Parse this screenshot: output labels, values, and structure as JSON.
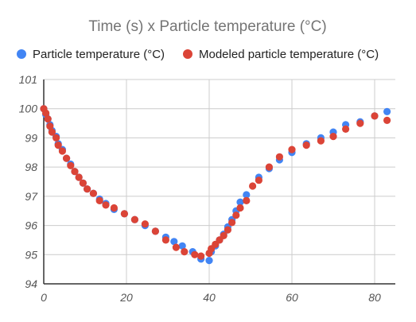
{
  "chart_data": {
    "type": "scatter",
    "title": "Time (s) x Particle temperature (°C)",
    "xlabel": "",
    "ylabel": "",
    "xlim": [
      0,
      85
    ],
    "ylim": [
      94,
      101
    ],
    "xticks": [
      0,
      20,
      40,
      60,
      80
    ],
    "yticks": [
      94,
      95,
      96,
      97,
      98,
      99,
      100,
      101
    ],
    "grid": true,
    "legend_position": "top",
    "series": [
      {
        "name": "Particle temperature (°C)",
        "color": "#4285f4",
        "points": [
          [
            0,
            100.0
          ],
          [
            0.5,
            99.8
          ],
          [
            1,
            99.65
          ],
          [
            1.5,
            99.45
          ],
          [
            2,
            99.25
          ],
          [
            3,
            99.05
          ],
          [
            3.5,
            98.8
          ],
          [
            4.5,
            98.6
          ],
          [
            5.5,
            98.3
          ],
          [
            6.5,
            98.1
          ],
          [
            7.5,
            97.85
          ],
          [
            8.5,
            97.65
          ],
          [
            9.5,
            97.45
          ],
          [
            10.5,
            97.25
          ],
          [
            12,
            97.1
          ],
          [
            13.5,
            96.9
          ],
          [
            15,
            96.75
          ],
          [
            17,
            96.55
          ],
          [
            19.5,
            96.4
          ],
          [
            22,
            96.2
          ],
          [
            24.5,
            96.0
          ],
          [
            27,
            95.8
          ],
          [
            29.5,
            95.6
          ],
          [
            31.5,
            95.45
          ],
          [
            33.5,
            95.3
          ],
          [
            36,
            95.1
          ],
          [
            38,
            94.85
          ],
          [
            40,
            94.8
          ],
          [
            40.5,
            95.1
          ],
          [
            41.5,
            95.3
          ],
          [
            42.5,
            95.5
          ],
          [
            43.5,
            95.7
          ],
          [
            44.5,
            95.95
          ],
          [
            45.5,
            96.2
          ],
          [
            46.5,
            96.5
          ],
          [
            47.5,
            96.8
          ],
          [
            49,
            97.05
          ],
          [
            52,
            97.65
          ],
          [
            54.5,
            97.95
          ],
          [
            57,
            98.25
          ],
          [
            60,
            98.5
          ],
          [
            63.5,
            98.8
          ],
          [
            67,
            99.0
          ],
          [
            70,
            99.2
          ],
          [
            73,
            99.45
          ],
          [
            76.5,
            99.55
          ],
          [
            80,
            99.75
          ],
          [
            83,
            99.9
          ]
        ]
      },
      {
        "name": "Modeled particle temperature (°C)",
        "color": "#db4437",
        "points": [
          [
            0,
            100.0
          ],
          [
            0.5,
            99.85
          ],
          [
            1,
            99.65
          ],
          [
            1.5,
            99.4
          ],
          [
            2,
            99.2
          ],
          [
            3,
            99.0
          ],
          [
            3.5,
            98.75
          ],
          [
            4.5,
            98.55
          ],
          [
            5.5,
            98.3
          ],
          [
            6.5,
            98.05
          ],
          [
            7.5,
            97.85
          ],
          [
            8.5,
            97.65
          ],
          [
            9.5,
            97.45
          ],
          [
            10.5,
            97.25
          ],
          [
            12,
            97.1
          ],
          [
            13.5,
            96.85
          ],
          [
            15,
            96.7
          ],
          [
            17,
            96.6
          ],
          [
            19.5,
            96.4
          ],
          [
            22,
            96.2
          ],
          [
            24.5,
            96.05
          ],
          [
            27,
            95.8
          ],
          [
            29.5,
            95.5
          ],
          [
            32,
            95.25
          ],
          [
            34,
            95.1
          ],
          [
            36.5,
            95.0
          ],
          [
            38,
            94.95
          ],
          [
            40,
            95.05
          ],
          [
            40.5,
            95.2
          ],
          [
            41.5,
            95.35
          ],
          [
            42.5,
            95.5
          ],
          [
            43.5,
            95.65
          ],
          [
            44.5,
            95.85
          ],
          [
            45.5,
            96.1
          ],
          [
            46.5,
            96.35
          ],
          [
            47.5,
            96.6
          ],
          [
            49,
            96.85
          ],
          [
            50.5,
            97.35
          ],
          [
            52,
            97.55
          ],
          [
            54.5,
            98.0
          ],
          [
            57,
            98.35
          ],
          [
            60,
            98.6
          ],
          [
            63.5,
            98.75
          ],
          [
            67,
            98.9
          ],
          [
            70,
            99.05
          ],
          [
            73,
            99.3
          ],
          [
            76.5,
            99.5
          ],
          [
            80,
            99.75
          ],
          [
            83,
            99.6
          ]
        ]
      }
    ]
  }
}
